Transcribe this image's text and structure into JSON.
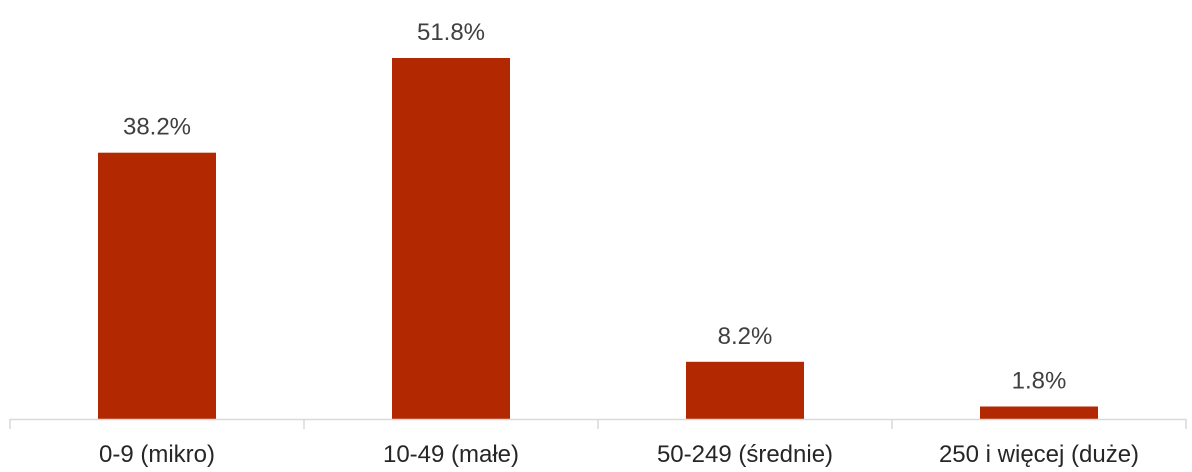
{
  "chart_data": {
    "type": "bar",
    "categories": [
      "0-9 (mikro)",
      "10-49 (małe)",
      "50-249 (średnie)",
      "250 i więcej (duże)"
    ],
    "values": [
      38.2,
      51.8,
      8.2,
      1.8
    ],
    "data_labels": [
      "38.2%",
      "51.8%",
      "8.2%",
      "1.8%"
    ],
    "title": "",
    "xlabel": "",
    "ylabel": "",
    "ylim": [
      0,
      60
    ],
    "grid": false,
    "legend": "none",
    "colors": {
      "bar": "#B22800",
      "axis": "#D9D9D9"
    }
  }
}
